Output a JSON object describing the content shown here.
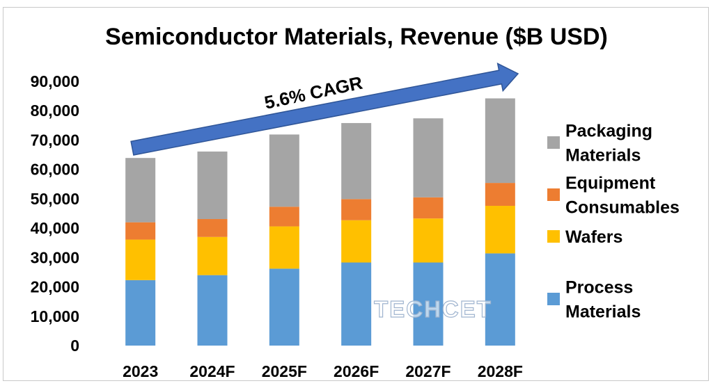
{
  "chart_data": {
    "type": "bar",
    "stacked": true,
    "title": "Semiconductor Materials, Revenue ($B USD)",
    "categories": [
      "2023",
      "2024F",
      "2025F",
      "2026F",
      "2027F",
      "2028F"
    ],
    "series": [
      {
        "name": "Process Materials",
        "color": "#5b9bd5",
        "values": [
          22300,
          24000,
          26200,
          28300,
          28300,
          31400
        ]
      },
      {
        "name": "Wafers",
        "color": "#ffc000",
        "values": [
          13800,
          13000,
          14400,
          14400,
          15000,
          16200
        ]
      },
      {
        "name": "Equipment Consumables",
        "color": "#ed7d31",
        "values": [
          5900,
          6100,
          6700,
          7200,
          7200,
          7800
        ]
      },
      {
        "name": "Packaging Materials",
        "color": "#a5a5a5",
        "values": [
          21900,
          23000,
          24600,
          25900,
          26900,
          28800
        ]
      }
    ],
    "ylim": [
      0,
      90000
    ],
    "yticks": [
      "0",
      "10,000",
      "20,000",
      "30,000",
      "40,000",
      "50,000",
      "60,000",
      "70,000",
      "80,000",
      "90,000"
    ],
    "grid": false,
    "legend": {
      "position": "right",
      "entries": [
        {
          "lines": [
            "Packaging",
            "Materials"
          ],
          "color": "#a5a5a5"
        },
        {
          "lines": [
            "Equipment",
            "Consumables"
          ],
          "color": "#ed7d31"
        },
        {
          "lines": [
            "Wafers"
          ],
          "color": "#ffc000"
        },
        {
          "lines": [
            "Process",
            "Materials"
          ],
          "color": "#5b9bd5"
        }
      ]
    },
    "annotation": {
      "text": "5.6% CAGR",
      "arrow_color": "#4472c4"
    },
    "watermark": "TECHCET"
  }
}
